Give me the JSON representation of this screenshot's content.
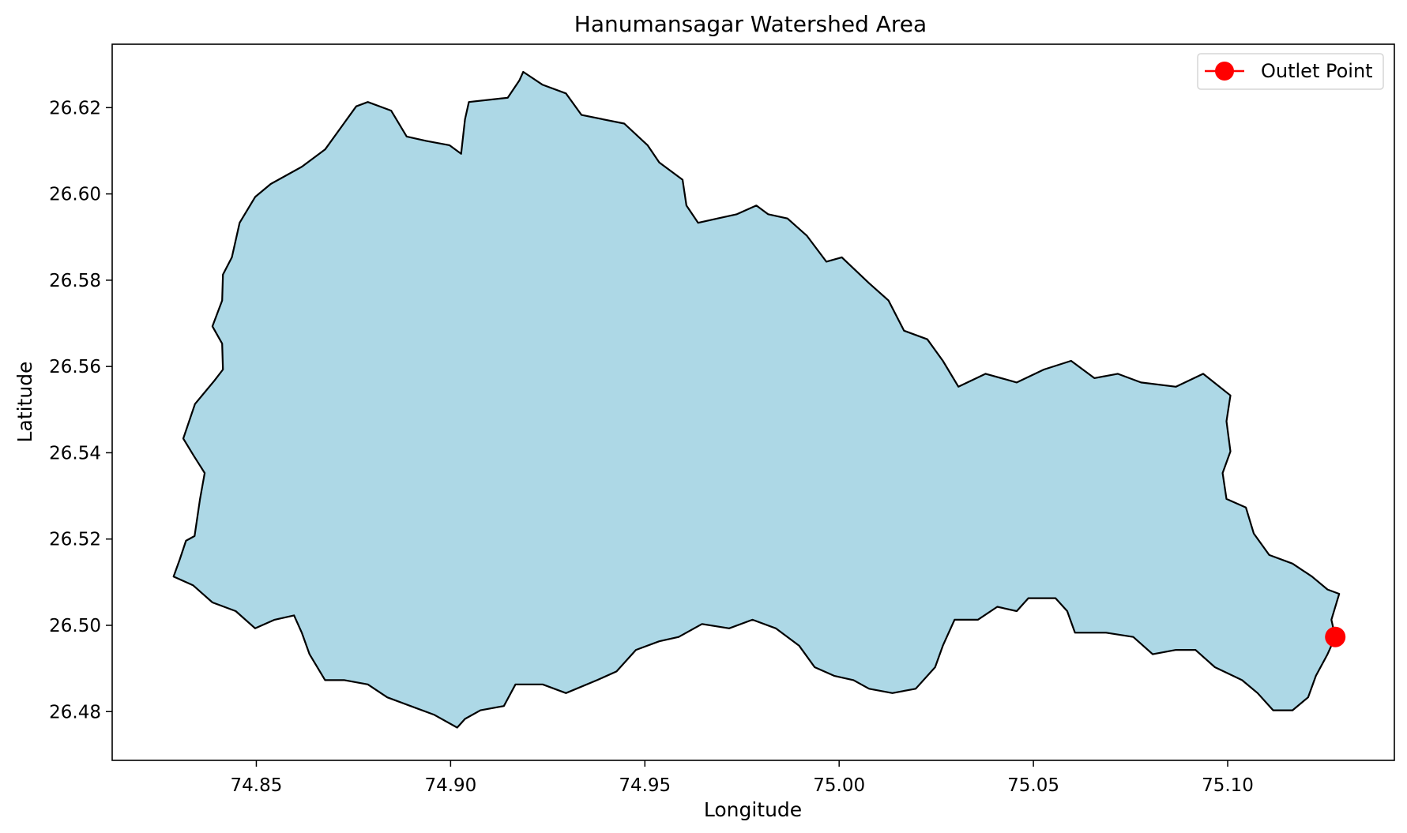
{
  "chart_data": {
    "type": "map",
    "title": "Hanumansagar Watershed Area",
    "xlabel": "Longitude",
    "ylabel": "Latitude",
    "xlim": [
      74.8129,
      75.1429
    ],
    "ylim": [
      26.4687,
      26.6347
    ],
    "xticks": [
      74.85,
      74.9,
      74.95,
      75.0,
      75.05,
      75.1
    ],
    "xtick_labels": [
      "74.85",
      "74.90",
      "74.95",
      "75.00",
      "75.05",
      "75.10"
    ],
    "yticks": [
      26.48,
      26.5,
      26.52,
      26.54,
      26.56,
      26.58,
      26.6,
      26.62
    ],
    "ytick_labels": [
      "26.48",
      "26.50",
      "26.52",
      "26.54",
      "26.56",
      "26.58",
      "26.60",
      "26.62"
    ],
    "grid": false,
    "legend": {
      "placement": "top-right",
      "entries": [
        {
          "label": "Outlet Point",
          "color": "#ff0000",
          "marker": "circle-line"
        }
      ]
    },
    "colors": {
      "watershed_fill": "#add8e6",
      "watershed_edge": "#000000",
      "outlet": "#ff0000"
    },
    "outlet_point": {
      "lon": 75.1277,
      "lat": 26.4973
    },
    "watershed_boundary": [
      [
        74.8287,
        26.5113
      ],
      [
        74.8303,
        26.5153
      ],
      [
        74.8319,
        26.5196
      ],
      [
        74.8341,
        26.5207
      ],
      [
        74.8355,
        26.5293
      ],
      [
        74.8367,
        26.5353
      ],
      [
        74.8339,
        26.5393
      ],
      [
        74.8312,
        26.5433
      ],
      [
        74.8342,
        26.5513
      ],
      [
        74.8392,
        26.5567
      ],
      [
        74.8414,
        26.5593
      ],
      [
        74.8412,
        26.5653
      ],
      [
        74.8387,
        26.5693
      ],
      [
        74.8412,
        26.5753
      ],
      [
        74.8414,
        26.5813
      ],
      [
        74.8437,
        26.5853
      ],
      [
        74.8457,
        26.5933
      ],
      [
        74.8497,
        26.5993
      ],
      [
        74.8537,
        26.6023
      ],
      [
        74.8617,
        26.6063
      ],
      [
        74.8677,
        26.6103
      ],
      [
        74.8717,
        26.6153
      ],
      [
        74.8757,
        26.6203
      ],
      [
        74.8787,
        26.6213
      ],
      [
        74.8847,
        26.6193
      ],
      [
        74.8887,
        26.6133
      ],
      [
        74.8937,
        26.6123
      ],
      [
        74.8997,
        26.6113
      ],
      [
        74.9027,
        26.6093
      ],
      [
        74.9037,
        26.6173
      ],
      [
        74.9047,
        26.6213
      ],
      [
        74.9147,
        26.6223
      ],
      [
        74.9177,
        26.6263
      ],
      [
        74.9187,
        26.6283
      ],
      [
        74.9237,
        26.6253
      ],
      [
        74.9297,
        26.6233
      ],
      [
        74.9337,
        26.6183
      ],
      [
        74.9447,
        26.6163
      ],
      [
        74.9507,
        26.6113
      ],
      [
        74.9537,
        26.6073
      ],
      [
        74.9597,
        26.6033
      ],
      [
        74.9607,
        26.5973
      ],
      [
        74.9637,
        26.5933
      ],
      [
        74.9687,
        26.5943
      ],
      [
        74.9737,
        26.5953
      ],
      [
        74.9787,
        26.5973
      ],
      [
        74.9817,
        26.5953
      ],
      [
        74.9867,
        26.5943
      ],
      [
        74.9917,
        26.5903
      ],
      [
        74.9967,
        26.5843
      ],
      [
        75.0007,
        26.5853
      ],
      [
        75.0077,
        26.5793
      ],
      [
        75.0127,
        26.5753
      ],
      [
        75.0167,
        26.5683
      ],
      [
        75.0227,
        26.5663
      ],
      [
        75.0267,
        26.5613
      ],
      [
        75.0307,
        26.5553
      ],
      [
        75.0377,
        26.5583
      ],
      [
        75.0457,
        26.5563
      ],
      [
        75.0527,
        26.5593
      ],
      [
        75.0597,
        26.5613
      ],
      [
        75.0657,
        26.5573
      ],
      [
        75.0717,
        26.5583
      ],
      [
        75.0777,
        26.5563
      ],
      [
        75.0867,
        26.5553
      ],
      [
        75.0937,
        26.5583
      ],
      [
        75.1007,
        26.5533
      ],
      [
        75.0997,
        26.5473
      ],
      [
        75.1007,
        26.5403
      ],
      [
        75.0987,
        26.5353
      ],
      [
        75.0997,
        26.5293
      ],
      [
        75.1047,
        26.5273
      ],
      [
        75.1067,
        26.5213
      ],
      [
        75.1107,
        26.5163
      ],
      [
        75.1167,
        26.5143
      ],
      [
        75.1217,
        26.5113
      ],
      [
        75.1257,
        26.5083
      ],
      [
        75.1287,
        26.5073
      ],
      [
        75.1267,
        26.5013
      ],
      [
        75.1277,
        26.4973
      ],
      [
        75.1257,
        26.4933
      ],
      [
        75.1227,
        26.4883
      ],
      [
        75.1207,
        26.4833
      ],
      [
        75.1167,
        26.4803
      ],
      [
        75.1117,
        26.4803
      ],
      [
        75.1077,
        26.4843
      ],
      [
        75.1037,
        26.4873
      ],
      [
        75.0967,
        26.4903
      ],
      [
        75.0917,
        26.4943
      ],
      [
        75.0867,
        26.4943
      ],
      [
        75.0807,
        26.4933
      ],
      [
        75.0757,
        26.4973
      ],
      [
        75.0687,
        26.4983
      ],
      [
        75.0607,
        26.4983
      ],
      [
        75.0587,
        26.5033
      ],
      [
        75.0557,
        26.5063
      ],
      [
        75.0487,
        26.5063
      ],
      [
        75.0457,
        26.5033
      ],
      [
        75.0407,
        26.5043
      ],
      [
        75.0357,
        26.5013
      ],
      [
        75.0297,
        26.5013
      ],
      [
        75.0267,
        26.4953
      ],
      [
        75.0247,
        26.4903
      ],
      [
        75.0197,
        26.4853
      ],
      [
        75.0137,
        26.4843
      ],
      [
        75.0077,
        26.4853
      ],
      [
        75.0037,
        26.4873
      ],
      [
        74.9987,
        26.4883
      ],
      [
        74.9937,
        26.4903
      ],
      [
        74.9897,
        26.4953
      ],
      [
        74.9837,
        26.4993
      ],
      [
        74.9777,
        26.5013
      ],
      [
        74.9717,
        26.4993
      ],
      [
        74.9647,
        26.5003
      ],
      [
        74.9587,
        26.4973
      ],
      [
        74.9537,
        26.4963
      ],
      [
        74.9477,
        26.4943
      ],
      [
        74.9427,
        26.4893
      ],
      [
        74.9377,
        26.4873
      ],
      [
        74.9297,
        26.4843
      ],
      [
        74.9237,
        26.4863
      ],
      [
        74.9167,
        26.4863
      ],
      [
        74.9137,
        26.4813
      ],
      [
        74.9077,
        26.4803
      ],
      [
        74.9037,
        26.4783
      ],
      [
        74.9017,
        26.4763
      ],
      [
        74.8957,
        26.4793
      ],
      [
        74.8897,
        26.4813
      ],
      [
        74.8837,
        26.4833
      ],
      [
        74.8787,
        26.4863
      ],
      [
        74.8727,
        26.4873
      ],
      [
        74.8677,
        26.4873
      ],
      [
        74.8637,
        26.4933
      ],
      [
        74.8617,
        26.4983
      ],
      [
        74.8597,
        26.5023
      ],
      [
        74.8547,
        26.5013
      ],
      [
        74.8497,
        26.4993
      ],
      [
        74.8447,
        26.5033
      ],
      [
        74.8387,
        26.5053
      ],
      [
        74.8337,
        26.5093
      ],
      [
        74.8287,
        26.5113
      ]
    ]
  }
}
